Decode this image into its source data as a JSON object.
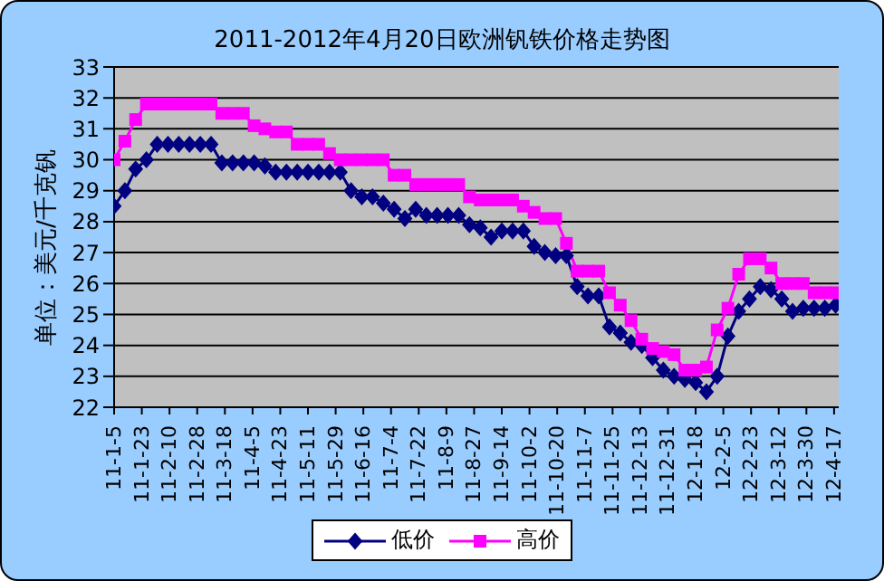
{
  "chart_data": {
    "type": "line",
    "title": "2011-2012年4月20日欧洲钒铁价格走势图",
    "ylabel": "单位：美元/千克钒",
    "x": [
      "2011-01-05",
      "2011-01-12",
      "2011-01-19",
      "2011-01-26",
      "2011-02-02",
      "2011-02-09",
      "2011-02-16",
      "2011-02-23",
      "2011-03-02",
      "2011-03-09",
      "2011-03-16",
      "2011-03-23",
      "2011-03-30",
      "2011-04-06",
      "2011-04-13",
      "2011-04-20",
      "2011-04-27",
      "2011-05-04",
      "2011-05-11",
      "2011-05-18",
      "2011-05-25",
      "2011-06-01",
      "2011-06-08",
      "2011-06-15",
      "2011-06-22",
      "2011-06-29",
      "2011-07-06",
      "2011-07-13",
      "2011-07-20",
      "2011-07-27",
      "2011-08-03",
      "2011-08-10",
      "2011-08-17",
      "2011-08-24",
      "2011-08-31",
      "2011-09-07",
      "2011-09-14",
      "2011-09-21",
      "2011-09-28",
      "2011-10-05",
      "2011-10-12",
      "2011-10-19",
      "2011-10-26",
      "2011-11-02",
      "2011-11-09",
      "2011-11-16",
      "2011-11-23",
      "2011-11-30",
      "2011-12-07",
      "2011-12-14",
      "2011-12-21",
      "2011-12-28",
      "2012-01-04",
      "2012-01-11",
      "2012-01-18",
      "2012-01-25",
      "2012-02-01",
      "2012-02-08",
      "2012-02-15",
      "2012-02-22",
      "2012-02-29",
      "2012-03-07",
      "2012-03-14",
      "2012-03-21",
      "2012-03-28",
      "2012-04-04",
      "2012-04-11",
      "2012-04-18"
    ],
    "series": [
      {
        "name": "低价",
        "color": "#000080",
        "marker": "diamond",
        "values": [
          28.5,
          29.0,
          29.7,
          30.0,
          30.5,
          30.5,
          30.5,
          30.5,
          30.5,
          30.5,
          29.9,
          29.9,
          29.9,
          29.9,
          29.8,
          29.6,
          29.6,
          29.6,
          29.6,
          29.6,
          29.6,
          29.6,
          29.0,
          28.8,
          28.8,
          28.6,
          28.4,
          28.1,
          28.4,
          28.2,
          28.2,
          28.2,
          28.2,
          27.9,
          27.8,
          27.5,
          27.7,
          27.7,
          27.7,
          27.2,
          27.0,
          26.9,
          26.9,
          25.9,
          25.6,
          25.6,
          24.6,
          24.4,
          24.1,
          24.0,
          23.6,
          23.2,
          23.0,
          22.9,
          22.8,
          22.5,
          23.0,
          24.3,
          25.1,
          25.5,
          25.9,
          25.8,
          25.5,
          25.1,
          25.2,
          25.2,
          25.2,
          25.3
        ]
      },
      {
        "name": "高价",
        "color": "#ff00ff",
        "marker": "square",
        "values": [
          30.0,
          30.6,
          31.3,
          31.8,
          31.8,
          31.8,
          31.8,
          31.8,
          31.8,
          31.8,
          31.5,
          31.5,
          31.5,
          31.1,
          31.0,
          30.9,
          30.9,
          30.5,
          30.5,
          30.5,
          30.2,
          30.0,
          30.0,
          30.0,
          30.0,
          30.0,
          29.5,
          29.5,
          29.2,
          29.2,
          29.2,
          29.2,
          29.2,
          28.8,
          28.7,
          28.7,
          28.7,
          28.7,
          28.5,
          28.3,
          28.1,
          28.1,
          27.3,
          26.4,
          26.4,
          26.4,
          25.7,
          25.3,
          24.8,
          24.2,
          23.9,
          23.8,
          23.7,
          23.2,
          23.2,
          23.3,
          24.5,
          25.2,
          26.3,
          26.8,
          26.8,
          26.5,
          26.0,
          26.0,
          26.0,
          25.7,
          25.7,
          25.7
        ]
      }
    ],
    "xlim": [
      "2011-01-05",
      "2012-04-20"
    ],
    "xticks": [
      {
        "value": "2011-01-05",
        "label": "11-1-5"
      },
      {
        "value": "2011-01-23",
        "label": "11-1-23"
      },
      {
        "value": "2011-02-10",
        "label": "11-2-10"
      },
      {
        "value": "2011-02-28",
        "label": "11-2-28"
      },
      {
        "value": "2011-03-18",
        "label": "11-3-18"
      },
      {
        "value": "2011-04-05",
        "label": "11-4-5"
      },
      {
        "value": "2011-04-23",
        "label": "11-4-23"
      },
      {
        "value": "2011-05-11",
        "label": "11-5-11"
      },
      {
        "value": "2011-05-29",
        "label": "11-5-29"
      },
      {
        "value": "2011-06-16",
        "label": "11-6-16"
      },
      {
        "value": "2011-07-04",
        "label": "11-7-4"
      },
      {
        "value": "2011-07-22",
        "label": "11-7-22"
      },
      {
        "value": "2011-08-09",
        "label": "11-8-9"
      },
      {
        "value": "2011-08-27",
        "label": "11-8-27"
      },
      {
        "value": "2011-09-14",
        "label": "11-9-14"
      },
      {
        "value": "2011-10-02",
        "label": "11-10-2"
      },
      {
        "value": "2011-10-20",
        "label": "11-10-20"
      },
      {
        "value": "2011-11-07",
        "label": "11-11-7"
      },
      {
        "value": "2011-11-25",
        "label": "11-11-25"
      },
      {
        "value": "2011-12-13",
        "label": "11-12-13"
      },
      {
        "value": "2011-12-31",
        "label": "11-12-31"
      },
      {
        "value": "2012-01-18",
        "label": "12-1-18"
      },
      {
        "value": "2012-02-05",
        "label": "12-2-5"
      },
      {
        "value": "2012-02-23",
        "label": "12-2-23"
      },
      {
        "value": "2012-03-12",
        "label": "12-3-12"
      },
      {
        "value": "2012-03-30",
        "label": "12-3-30"
      },
      {
        "value": "2012-04-17",
        "label": "12-4-17"
      }
    ],
    "ylim": [
      22,
      33
    ],
    "yticks": [
      22,
      23,
      24,
      25,
      26,
      27,
      28,
      29,
      30,
      31,
      32,
      33
    ],
    "grid": "y",
    "legend": "bottom",
    "line_style": "solid"
  }
}
